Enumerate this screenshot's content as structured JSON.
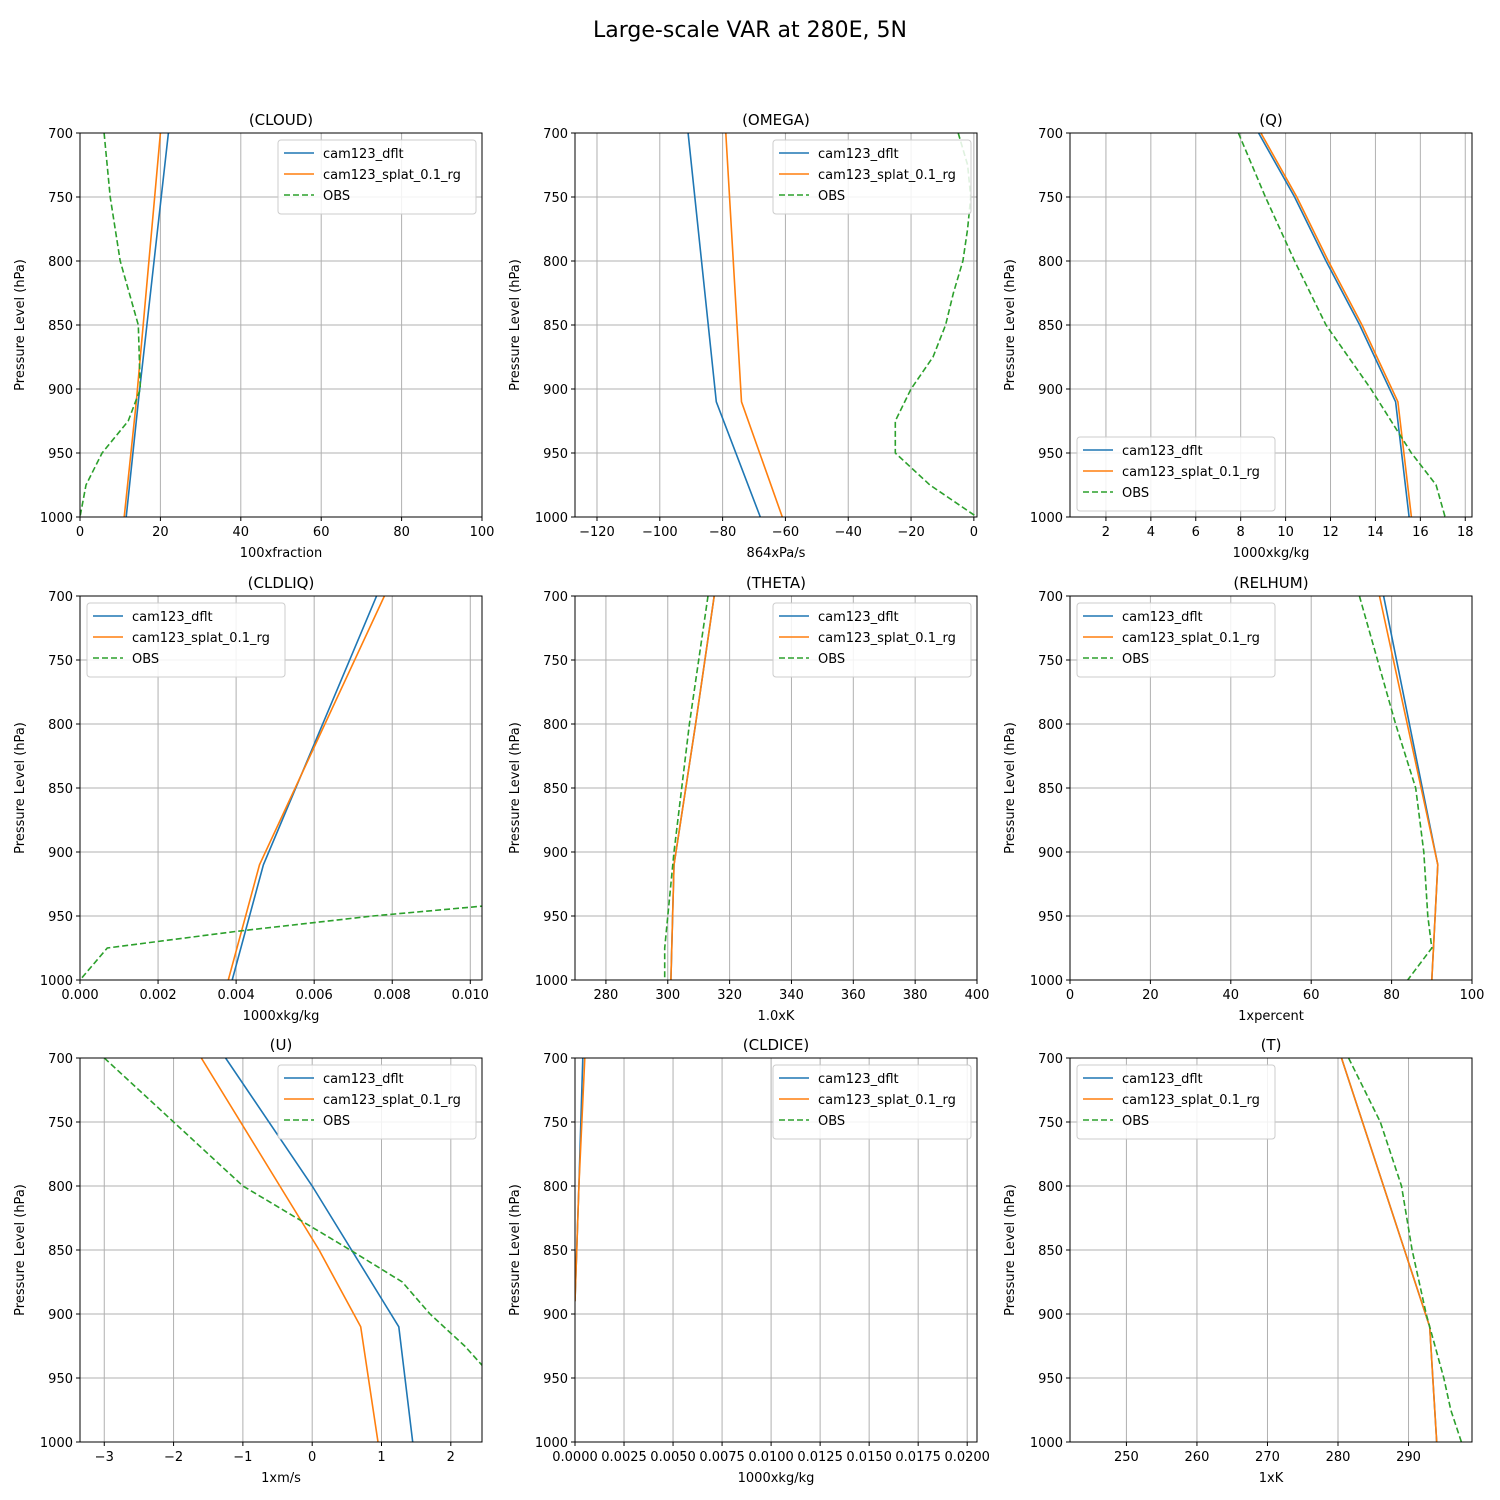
{
  "suptitle": "Large-scale VAR at 280E, 5N",
  "ylabel": "Pressure Level (hPa)",
  "colors": {
    "dflt": "#1f77b4",
    "splat": "#ff7f0e",
    "obs": "#2ca02c",
    "grid": "#b0b0b0"
  },
  "chart_data": [
    {
      "type": "line",
      "title": "(CLOUD)",
      "xlabel": "100xfraction",
      "xlim": [
        0,
        100
      ],
      "ylim": [
        1000,
        700
      ],
      "grid": true,
      "legend": "upper-right",
      "xticks": [
        0,
        20,
        40,
        60,
        80,
        100
      ],
      "xtick_labels": [
        "0",
        "20",
        "40",
        "60",
        "80",
        "100"
      ],
      "yticks": [
        700,
        750,
        800,
        850,
        900,
        950,
        1000
      ],
      "ytick_labels": [
        "700",
        "750",
        "800",
        "850",
        "900",
        "950",
        "1000"
      ],
      "series": [
        {
          "name": "cam123_dflt",
          "style": "solid",
          "p": [
            700,
            910,
            1000
          ],
          "x": [
            22,
            14.5,
            11.5
          ]
        },
        {
          "name": "cam123_splat_0.1_rg",
          "style": "solid",
          "p": [
            700,
            910,
            1000
          ],
          "x": [
            20,
            14,
            11
          ]
        },
        {
          "name": "OBS",
          "style": "dashed",
          "p": [
            700,
            750,
            800,
            850,
            900,
            925,
            950,
            975,
            1000
          ],
          "x": [
            6,
            7.5,
            10,
            14.5,
            15,
            12,
            5.5,
            1.5,
            0
          ]
        }
      ]
    },
    {
      "type": "line",
      "title": "(OMEGA)",
      "xlabel": "864xPa/s",
      "xlim": [
        -127,
        1
      ],
      "ylim": [
        1000,
        700
      ],
      "grid": true,
      "legend": "upper-right",
      "xticks": [
        -120,
        -100,
        -80,
        -60,
        -40,
        -20,
        0
      ],
      "xtick_labels": [
        "−120",
        "−100",
        "−80",
        "−60",
        "−40",
        "−20",
        "0"
      ],
      "yticks": [
        700,
        750,
        800,
        850,
        900,
        950,
        1000
      ],
      "ytick_labels": [
        "700",
        "750",
        "800",
        "850",
        "900",
        "950",
        "1000"
      ],
      "series": [
        {
          "name": "cam123_dflt",
          "style": "solid",
          "p": [
            700,
            910,
            1000
          ],
          "x": [
            -91,
            -82,
            -68
          ]
        },
        {
          "name": "cam123_splat_0.1_rg",
          "style": "solid",
          "p": [
            700,
            910,
            1000
          ],
          "x": [
            -79,
            -74,
            -61
          ]
        },
        {
          "name": "OBS",
          "style": "dashed",
          "p": [
            700,
            725,
            750,
            775,
            800,
            825,
            850,
            875,
            900,
            925,
            950,
            975,
            1000
          ],
          "x": [
            -5,
            -2,
            -1,
            -2,
            -3.5,
            -6.5,
            -9,
            -13,
            -20,
            -25,
            -25,
            -14,
            1
          ]
        }
      ]
    },
    {
      "type": "line",
      "title": "(Q)",
      "xlabel": "1000xkg/kg",
      "xlim": [
        0.4,
        18.3
      ],
      "ylim": [
        1000,
        700
      ],
      "grid": true,
      "legend": "lower-left",
      "xticks": [
        2,
        4,
        6,
        8,
        10,
        12,
        14,
        16,
        18
      ],
      "xtick_labels": [
        "2",
        "4",
        "6",
        "8",
        "10",
        "12",
        "14",
        "16",
        "18"
      ],
      "yticks": [
        700,
        750,
        800,
        850,
        900,
        950,
        1000
      ],
      "ytick_labels": [
        "700",
        "750",
        "800",
        "850",
        "900",
        "950",
        "1000"
      ],
      "series": [
        {
          "name": "cam123_dflt",
          "style": "solid",
          "p": [
            700,
            750,
            800,
            850,
            910,
            1000
          ],
          "x": [
            8.8,
            10.4,
            11.8,
            13.3,
            14.9,
            15.5
          ]
        },
        {
          "name": "cam123_splat_0.1_rg",
          "style": "solid",
          "p": [
            700,
            750,
            800,
            850,
            910,
            1000
          ],
          "x": [
            8.9,
            10.5,
            11.9,
            13.4,
            15.0,
            15.6
          ]
        },
        {
          "name": "OBS",
          "style": "dashed",
          "p": [
            700,
            750,
            800,
            850,
            900,
            950,
            975,
            1000
          ],
          "x": [
            7.9,
            9.1,
            10.4,
            11.8,
            13.8,
            15.6,
            16.7,
            17.1
          ]
        }
      ]
    },
    {
      "type": "line",
      "title": "(CLDLIQ)",
      "xlabel": "1000xkg/kg",
      "xlim": [
        0,
        0.0103
      ],
      "ylim": [
        1000,
        700
      ],
      "grid": true,
      "legend": "upper-left",
      "xticks": [
        0,
        0.002,
        0.004,
        0.006,
        0.008,
        0.01
      ],
      "xtick_labels": [
        "0.000",
        "0.002",
        "0.004",
        "0.006",
        "0.008",
        "0.010"
      ],
      "yticks": [
        700,
        750,
        800,
        850,
        900,
        950,
        1000
      ],
      "ytick_labels": [
        "700",
        "750",
        "800",
        "850",
        "900",
        "950",
        "1000"
      ],
      "series": [
        {
          "name": "cam123_dflt",
          "style": "solid",
          "p": [
            700,
            910,
            1000
          ],
          "x": [
            0.0076,
            0.0047,
            0.0039
          ]
        },
        {
          "name": "cam123_splat_0.1_rg",
          "style": "solid",
          "p": [
            700,
            910,
            1000
          ],
          "x": [
            0.0078,
            0.0046,
            0.0038
          ]
        },
        {
          "name": "OBS",
          "style": "dashed",
          "p": [
            942,
            950,
            962,
            975,
            1000
          ],
          "x": [
            0.0104,
            0.0075,
            0.004,
            0.0007,
            0
          ]
        }
      ]
    },
    {
      "type": "line",
      "title": "(THETA)",
      "xlabel": "1.0xK",
      "xlim": [
        270,
        400
      ],
      "ylim": [
        1000,
        700
      ],
      "grid": true,
      "legend": "upper-right",
      "xticks": [
        280,
        300,
        320,
        340,
        360,
        380,
        400
      ],
      "xtick_labels": [
        "280",
        "300",
        "320",
        "340",
        "360",
        "380",
        "400"
      ],
      "yticks": [
        700,
        750,
        800,
        850,
        900,
        950,
        1000
      ],
      "ytick_labels": [
        "700",
        "750",
        "800",
        "850",
        "900",
        "950",
        "1000"
      ],
      "series": [
        {
          "name": "cam123_dflt",
          "style": "solid",
          "p": [
            700,
            800,
            910,
            1000
          ],
          "x": [
            315,
            309,
            302,
            301
          ]
        },
        {
          "name": "cam123_splat_0.1_rg",
          "style": "solid",
          "p": [
            700,
            800,
            910,
            1000
          ],
          "x": [
            315,
            309,
            302,
            301
          ]
        },
        {
          "name": "OBS",
          "style": "dashed",
          "p": [
            700,
            800,
            900,
            950,
            975,
            1000
          ],
          "x": [
            313,
            307,
            302,
            300,
            299,
            299
          ]
        }
      ]
    },
    {
      "type": "line",
      "title": "(RELHUM)",
      "xlabel": "1xpercent",
      "xlim": [
        0,
        100
      ],
      "ylim": [
        1000,
        700
      ],
      "grid": true,
      "legend": "upper-left",
      "xticks": [
        0,
        20,
        40,
        60,
        80,
        100
      ],
      "xtick_labels": [
        "0",
        "20",
        "40",
        "60",
        "80",
        "100"
      ],
      "yticks": [
        700,
        750,
        800,
        850,
        900,
        950,
        1000
      ],
      "ytick_labels": [
        "700",
        "750",
        "800",
        "850",
        "900",
        "950",
        "1000"
      ],
      "series": [
        {
          "name": "cam123_dflt",
          "style": "solid",
          "p": [
            700,
            910,
            1000
          ],
          "x": [
            78,
            91.5,
            90
          ]
        },
        {
          "name": "cam123_splat_0.1_rg",
          "style": "solid",
          "p": [
            700,
            910,
            1000
          ],
          "x": [
            77,
            91.5,
            90
          ]
        },
        {
          "name": "OBS",
          "style": "dashed",
          "p": [
            700,
            800,
            850,
            900,
            950,
            975,
            1000
          ],
          "x": [
            72,
            81,
            86,
            88,
            89,
            90,
            84
          ]
        }
      ]
    },
    {
      "type": "line",
      "title": "(U)",
      "xlabel": "1xm/s",
      "xlim": [
        -3.35,
        2.45
      ],
      "ylim": [
        1000,
        700
      ],
      "grid": true,
      "legend": "upper-right",
      "xticks": [
        -3,
        -2,
        -1,
        0,
        1,
        2
      ],
      "xtick_labels": [
        "−3",
        "−2",
        "−1",
        "0",
        "1",
        "2"
      ],
      "yticks": [
        700,
        750,
        800,
        850,
        900,
        950,
        1000
      ],
      "ytick_labels": [
        "700",
        "750",
        "800",
        "850",
        "900",
        "950",
        "1000"
      ],
      "series": [
        {
          "name": "cam123_dflt",
          "style": "solid",
          "p": [
            700,
            800,
            910,
            1000
          ],
          "x": [
            -1.25,
            0,
            1.25,
            1.45
          ]
        },
        {
          "name": "cam123_splat_0.1_rg",
          "style": "solid",
          "p": [
            700,
            850,
            910,
            1000
          ],
          "x": [
            -1.6,
            0.1,
            0.7,
            0.95
          ]
        },
        {
          "name": "OBS",
          "style": "dashed",
          "p": [
            700,
            750,
            800,
            850,
            875,
            900,
            925,
            940
          ],
          "x": [
            -3,
            -2,
            -1,
            0.55,
            1.3,
            1.7,
            2.2,
            2.45
          ]
        }
      ]
    },
    {
      "type": "line",
      "title": "(CLDICE)",
      "xlabel": "1000xkg/kg",
      "xlim": [
        0,
        0.0205
      ],
      "ylim": [
        1000,
        700
      ],
      "grid": true,
      "legend": "upper-right",
      "xticks": [
        0,
        0.0025,
        0.005,
        0.0075,
        0.01,
        0.0125,
        0.015,
        0.0175,
        0.02
      ],
      "xtick_labels": [
        "0.0000",
        "0.0025",
        "0.0050",
        "0.0075",
        "0.0100",
        "0.0125",
        "0.0150",
        "0.0175",
        "0.0200"
      ],
      "yticks": [
        700,
        750,
        800,
        850,
        900,
        950,
        1000
      ],
      "ytick_labels": [
        "700",
        "750",
        "800",
        "850",
        "900",
        "950",
        "1000"
      ],
      "series": [
        {
          "name": "cam123_dflt",
          "style": "solid",
          "p": [
            700,
            800,
            890
          ],
          "x": [
            0.0004,
            0.0002,
            0.0
          ]
        },
        {
          "name": "cam123_splat_0.1_rg",
          "style": "solid",
          "p": [
            700,
            800,
            890
          ],
          "x": [
            0.0005,
            0.0002,
            0.0
          ]
        },
        {
          "name": "OBS",
          "style": "dashed",
          "p": [],
          "x": []
        }
      ]
    },
    {
      "type": "line",
      "title": "(T)",
      "xlabel": "1xK",
      "xlim": [
        242,
        299
      ],
      "ylim": [
        1000,
        700
      ],
      "grid": true,
      "legend": "upper-left",
      "xticks": [
        250,
        260,
        270,
        280,
        290
      ],
      "xtick_labels": [
        "250",
        "260",
        "270",
        "280",
        "290"
      ],
      "yticks": [
        700,
        750,
        800,
        850,
        900,
        950,
        1000
      ],
      "ytick_labels": [
        "700",
        "750",
        "800",
        "850",
        "900",
        "950",
        "1000"
      ],
      "series": [
        {
          "name": "cam123_dflt",
          "style": "solid",
          "p": [
            700,
            910,
            1000
          ],
          "x": [
            280.5,
            293,
            294
          ]
        },
        {
          "name": "cam123_splat_0.1_rg",
          "style": "solid",
          "p": [
            700,
            910,
            1000
          ],
          "x": [
            280.5,
            293,
            294
          ]
        },
        {
          "name": "OBS",
          "style": "dashed",
          "p": [
            700,
            750,
            800,
            850,
            900,
            950,
            975,
            1000
          ],
          "x": [
            281.5,
            286,
            289,
            290.5,
            292.5,
            295,
            296,
            297.5
          ]
        }
      ]
    }
  ]
}
